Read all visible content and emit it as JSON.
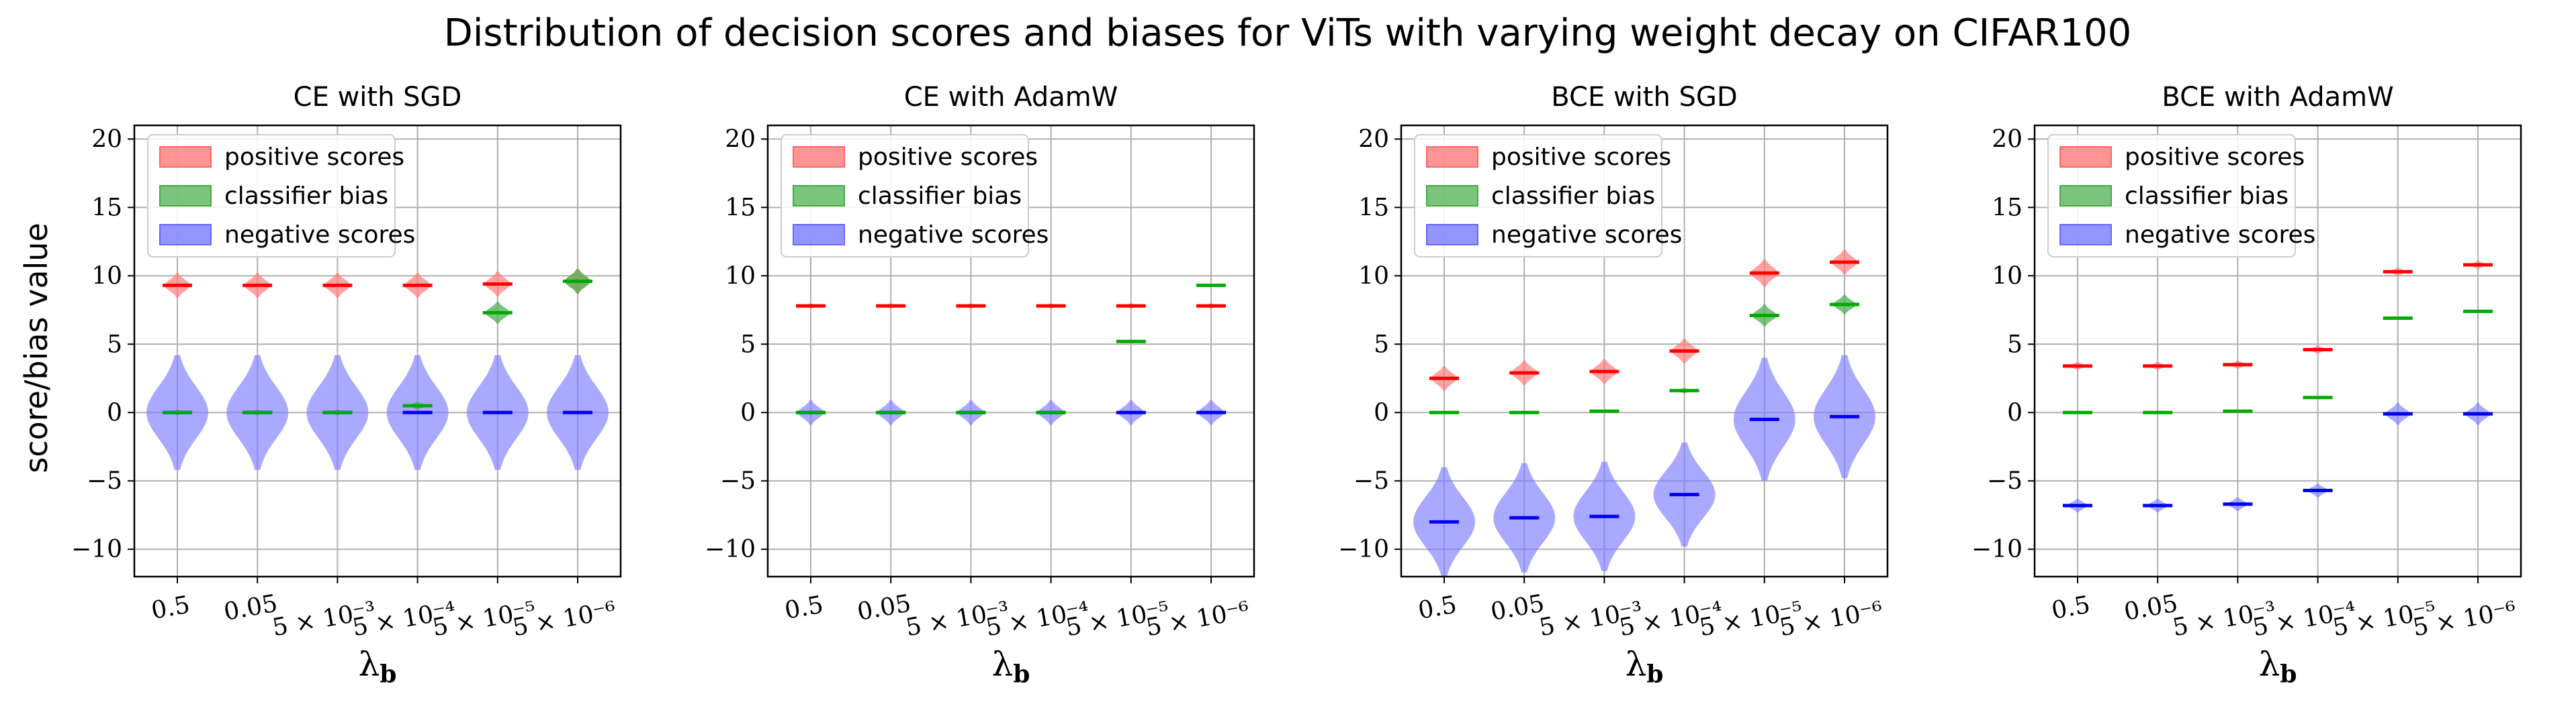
{
  "figure": {
    "suptitle": "Distribution of decision scores and biases for ViTs with varying weight decay on CIFAR100",
    "ylabel": "score/bias value",
    "xlabel_sym": "λ",
    "xlabel_sub": "b"
  },
  "legend": {
    "placement": "upper-left",
    "items": [
      {
        "label": "positive scores",
        "color": "#ff6666"
      },
      {
        "label": "classifier bias",
        "color": "#44aa44"
      },
      {
        "label": "negative scores",
        "color": "#6666ff"
      }
    ]
  },
  "colors": {
    "positive": "#ff7a7a",
    "bias": "#4caf50",
    "negative": "#7b7bff",
    "positive_line": "#ff0000",
    "bias_line": "#00aa00",
    "negative_line": "#0000ee",
    "grid": "#b0b0b0"
  },
  "chart_data": [
    {
      "type": "violin",
      "title": "CE with SGD",
      "categories": [
        "0.5",
        "0.05",
        "5 × 10⁻³",
        "5 × 10⁻⁴",
        "5 × 10⁻⁵",
        "5 × 10⁻⁶"
      ],
      "ylim": [
        -12,
        21
      ],
      "yticks": [
        -10,
        -5,
        0,
        5,
        10,
        15,
        20
      ],
      "grid": true,
      "series": [
        {
          "name": "positive scores",
          "medians": [
            9.3,
            9.3,
            9.3,
            9.3,
            9.4,
            9.6
          ],
          "spread": [
            0.9,
            0.9,
            0.9,
            0.9,
            0.9,
            0.9
          ]
        },
        {
          "name": "classifier bias",
          "medians": [
            0.0,
            0.0,
            0.0,
            0.5,
            7.3,
            9.6
          ],
          "spread": [
            0.2,
            0.2,
            0.2,
            0.3,
            0.8,
            0.9
          ]
        },
        {
          "name": "negative scores",
          "medians": [
            0.0,
            0.0,
            0.0,
            0.0,
            0.0,
            0.0
          ],
          "spread": [
            4.2,
            4.2,
            4.2,
            4.2,
            4.2,
            4.2
          ]
        }
      ]
    },
    {
      "type": "violin",
      "title": "CE with AdamW",
      "categories": [
        "0.5",
        "0.05",
        "5 × 10⁻³",
        "5 × 10⁻⁴",
        "5 × 10⁻⁵",
        "5 × 10⁻⁶"
      ],
      "ylim": [
        -12,
        21
      ],
      "yticks": [
        -10,
        -5,
        0,
        5,
        10,
        15,
        20
      ],
      "grid": true,
      "series": [
        {
          "name": "positive scores",
          "medians": [
            7.8,
            7.8,
            7.8,
            7.8,
            7.8,
            7.8
          ],
          "spread": [
            0.2,
            0.2,
            0.2,
            0.2,
            0.2,
            0.2
          ]
        },
        {
          "name": "classifier bias",
          "medians": [
            0.0,
            0.0,
            0.0,
            0.0,
            5.2,
            9.3
          ],
          "spread": [
            0.1,
            0.1,
            0.1,
            0.1,
            0.1,
            0.1
          ]
        },
        {
          "name": "negative scores",
          "medians": [
            0.0,
            0.0,
            0.0,
            0.0,
            0.0,
            0.0
          ],
          "spread": [
            0.9,
            0.9,
            0.9,
            0.9,
            0.9,
            0.9
          ]
        }
      ]
    },
    {
      "type": "violin",
      "title": "BCE with SGD",
      "categories": [
        "0.5",
        "0.05",
        "5 × 10⁻³",
        "5 × 10⁻⁴",
        "5 × 10⁻⁵",
        "5 × 10⁻⁶"
      ],
      "ylim": [
        -12,
        21
      ],
      "yticks": [
        -10,
        -5,
        0,
        5,
        10,
        15,
        20
      ],
      "grid": true,
      "series": [
        {
          "name": "positive scores",
          "medians": [
            2.5,
            2.9,
            3.0,
            4.5,
            10.2,
            11.0
          ],
          "spread": [
            0.9,
            0.9,
            0.9,
            0.9,
            1.0,
            0.9
          ]
        },
        {
          "name": "classifier bias",
          "medians": [
            0.0,
            0.0,
            0.1,
            1.6,
            7.1,
            7.9
          ],
          "spread": [
            0.1,
            0.1,
            0.1,
            0.2,
            0.8,
            0.7
          ]
        },
        {
          "name": "negative scores",
          "medians": [
            -8.0,
            -7.7,
            -7.6,
            -6.0,
            -0.5,
            -0.3
          ],
          "spread": [
            4.0,
            4.0,
            4.0,
            3.8,
            4.5,
            4.5
          ]
        }
      ]
    },
    {
      "type": "violin",
      "title": "BCE with AdamW",
      "categories": [
        "0.5",
        "0.05",
        "5 × 10⁻³",
        "5 × 10⁻⁴",
        "5 × 10⁻⁵",
        "5 × 10⁻⁶"
      ],
      "ylim": [
        -12,
        21
      ],
      "yticks": [
        -10,
        -5,
        0,
        5,
        10,
        15,
        20
      ],
      "grid": true,
      "series": [
        {
          "name": "positive scores",
          "medians": [
            3.4,
            3.4,
            3.5,
            4.6,
            10.3,
            10.8
          ],
          "spread": [
            0.3,
            0.3,
            0.3,
            0.3,
            0.3,
            0.3
          ]
        },
        {
          "name": "classifier bias",
          "medians": [
            0.0,
            0.0,
            0.1,
            1.1,
            6.9,
            7.4
          ],
          "spread": [
            0.1,
            0.1,
            0.1,
            0.1,
            0.1,
            0.1
          ]
        },
        {
          "name": "negative scores",
          "medians": [
            -6.8,
            -6.8,
            -6.7,
            -5.7,
            -0.1,
            -0.1
          ],
          "spread": [
            0.5,
            0.5,
            0.5,
            0.5,
            0.8,
            0.8
          ]
        }
      ]
    }
  ]
}
